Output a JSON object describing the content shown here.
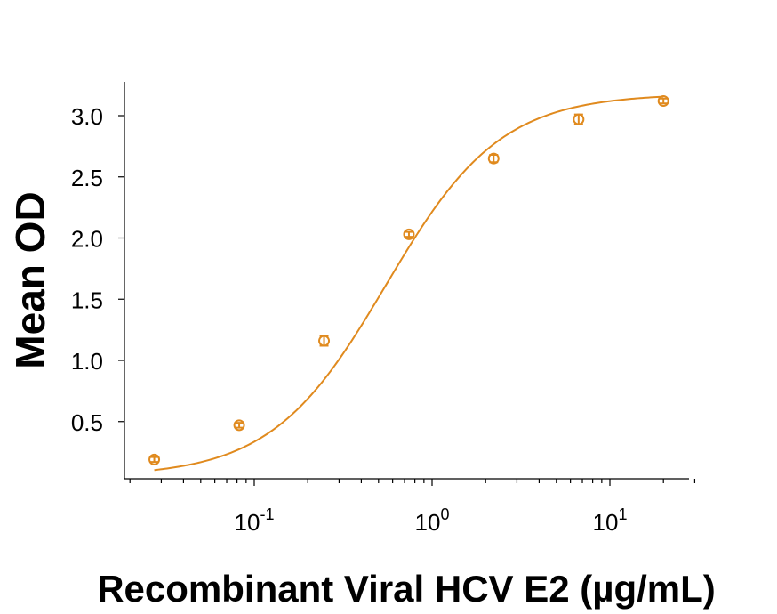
{
  "colors": {
    "series": "#E08A1E",
    "axis": "#000000",
    "background": "#ffffff"
  },
  "chart_data": {
    "type": "scatter",
    "title": "",
    "xlabel": "Recombinant Viral HCV E2 (µg/mL)",
    "ylabel": "Mean OD",
    "xscale": "log",
    "xlim": [
      0.02,
      30
    ],
    "ylim": [
      0.0,
      3.3
    ],
    "grid": false,
    "legend": "none",
    "x_tick_labels": [
      {
        "value": 0.1,
        "base": "10",
        "exp": "-1"
      },
      {
        "value": 1,
        "base": "10",
        "exp": "0"
      },
      {
        "value": 10,
        "base": "10",
        "exp": "1"
      }
    ],
    "y_ticks": [
      0.5,
      1.0,
      1.5,
      2.0,
      2.5,
      3.0
    ],
    "y_tick_labels": [
      "0.5",
      "1.0",
      "1.5",
      "2.0",
      "2.5",
      "3.0"
    ],
    "series": [
      {
        "marker": "circle-with-errorbar",
        "fit": "4PL",
        "x": [
          0.0274,
          0.0823,
          0.247,
          0.741,
          2.22,
          6.67,
          20
        ],
        "y": [
          0.19,
          0.47,
          1.16,
          2.03,
          2.65,
          2.97,
          3.12
        ],
        "error": [
          0.02,
          0.02,
          0.04,
          0.02,
          0.03,
          0.04,
          0.02
        ]
      }
    ]
  }
}
